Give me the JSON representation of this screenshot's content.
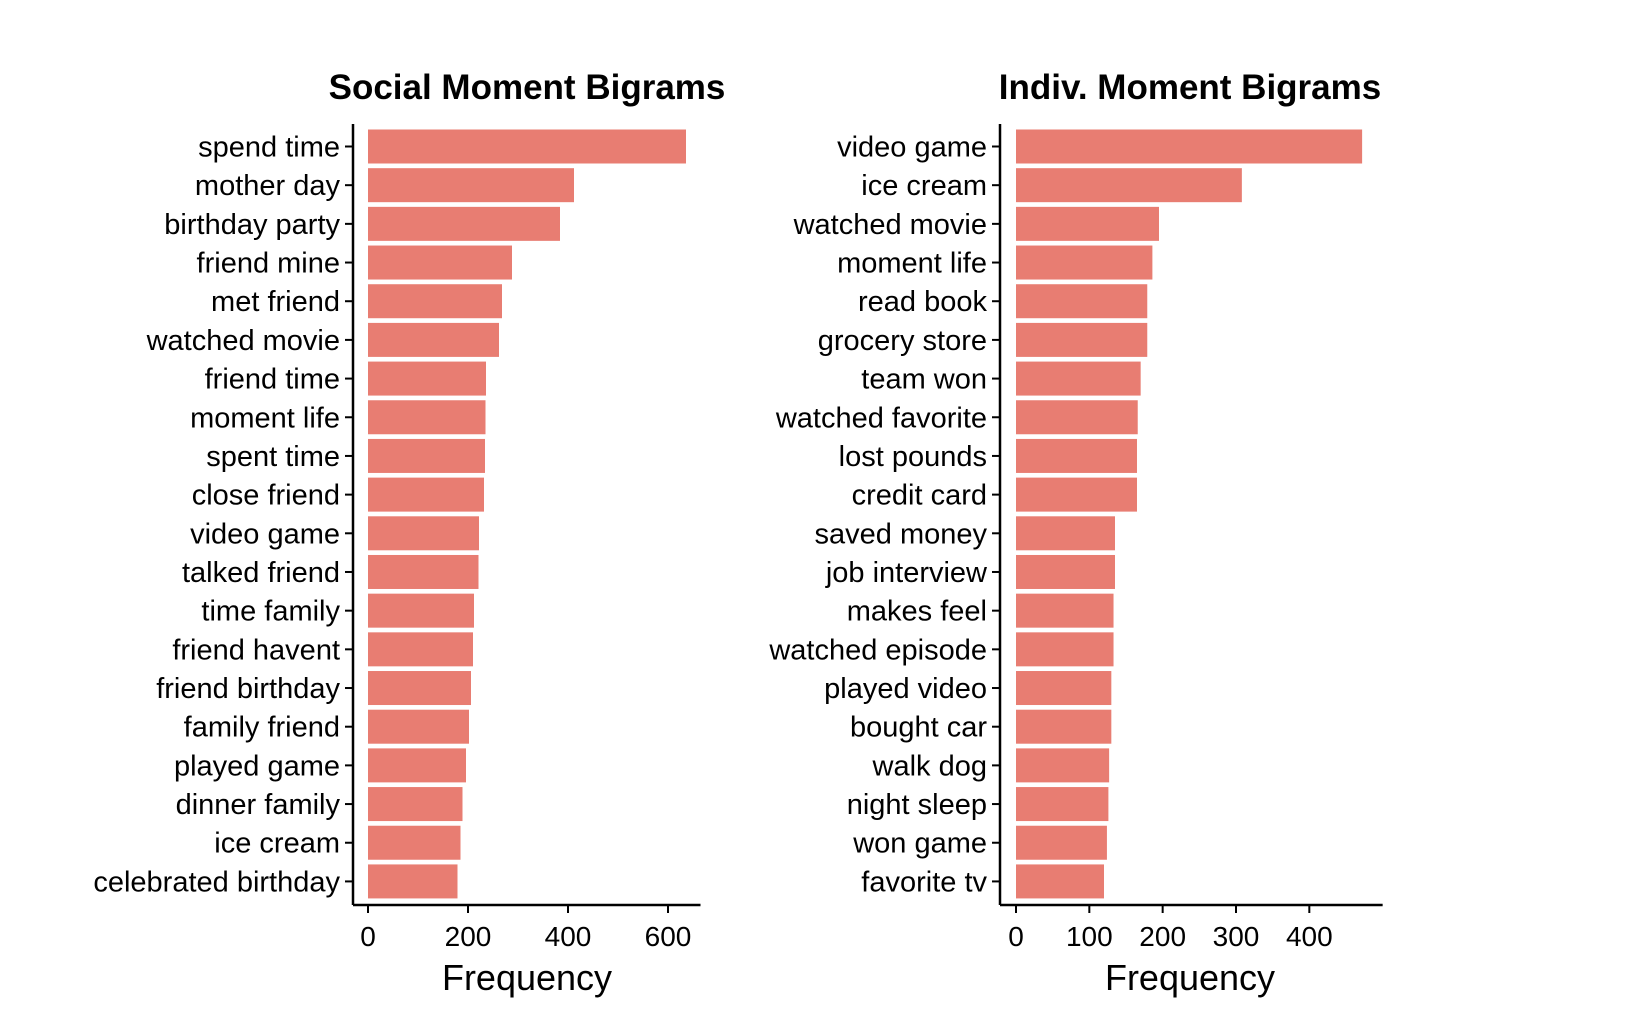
{
  "chart_data": [
    {
      "type": "bar",
      "orientation": "horizontal",
      "title": "Social Moment Bigrams",
      "xlabel": "Frequency",
      "ylabel": "",
      "xlim": [
        0,
        665
      ],
      "xticks": [
        0,
        200,
        400,
        600
      ],
      "grid": false,
      "legend": "none",
      "bar_color": "#E87D72",
      "categories": [
        "spend time",
        "mother day",
        "birthday party",
        "friend mine",
        "met friend",
        "watched movie",
        "friend time",
        "moment life",
        "spent time",
        "close friend",
        "video game",
        "talked friend",
        "time family",
        "friend havent",
        "friend birthday",
        "family friend",
        "played game",
        "dinner family",
        "ice cream",
        "celebrated birthday"
      ],
      "values": [
        636,
        412,
        384,
        288,
        268,
        262,
        236,
        235,
        234,
        232,
        222,
        221,
        212,
        210,
        206,
        202,
        196,
        189,
        185,
        179
      ]
    },
    {
      "type": "bar",
      "orientation": "horizontal",
      "title": "Indiv. Moment Bigrams",
      "xlabel": "Frequency",
      "ylabel": "",
      "xlim": [
        0,
        500
      ],
      "xticks": [
        0,
        100,
        200,
        300,
        400
      ],
      "grid": false,
      "legend": "none",
      "bar_color": "#E87D72",
      "categories": [
        "video game",
        "ice cream",
        "watched movie",
        "moment life",
        "read book",
        "grocery store",
        "team won",
        "watched favorite",
        "lost pounds",
        "credit card",
        "saved money",
        "job interview",
        "makes feel",
        "watched episode",
        "played video",
        "bought car",
        "walk dog",
        "night sleep",
        "won game",
        "favorite tv"
      ],
      "values": [
        472,
        308,
        195,
        186,
        179,
        179,
        170,
        166,
        165,
        165,
        135,
        135,
        133,
        133,
        130,
        130,
        127,
        126,
        124,
        120
      ]
    }
  ]
}
